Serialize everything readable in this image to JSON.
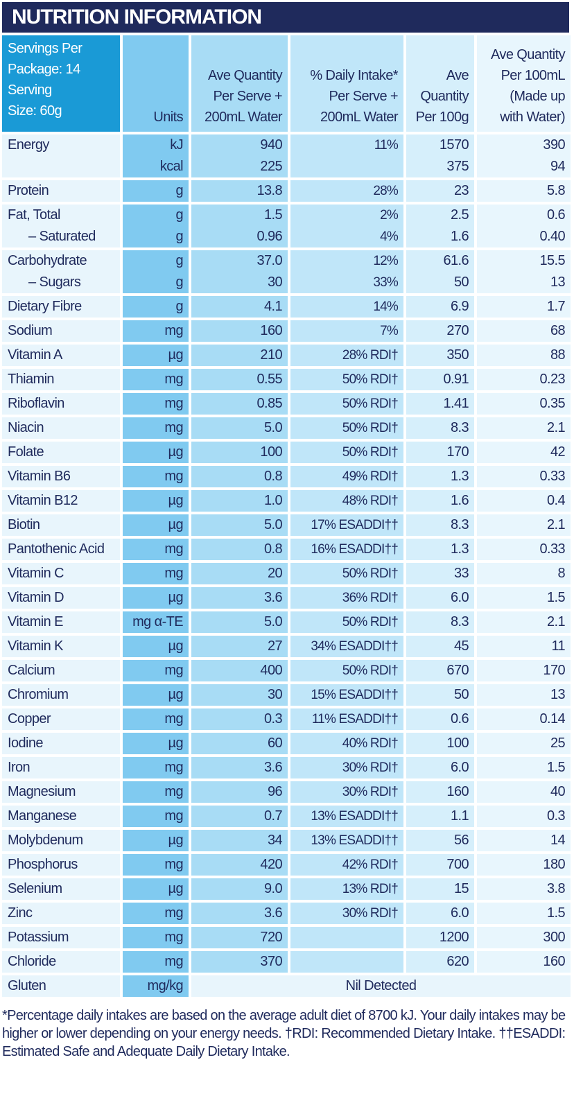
{
  "title": "NUTRITION INFORMATION",
  "header": {
    "servings": "Servings Per\nPackage: 14\nServing\nSize: 60g",
    "units": "Units",
    "per_serve": "Ave Quantity\nPer Serve +\n200mL Water",
    "daily_intake": "% Daily Intake*\nPer Serve +\n200mL Water",
    "per_100g": "Ave\nQuantity\nPer 100g",
    "per_100ml": "Ave Quantity\nPer 100mL\n(Made up\nwith Water)"
  },
  "rows": [
    {
      "name": [
        "Energy",
        ""
      ],
      "units": [
        "kJ",
        "kcal"
      ],
      "serve": [
        "940",
        "225"
      ],
      "di": [
        "11%",
        ""
      ],
      "g100": [
        "1570",
        "375"
      ],
      "ml100": [
        "390",
        "94"
      ]
    },
    {
      "name": [
        "Protein"
      ],
      "units": [
        "g"
      ],
      "serve": [
        "13.8"
      ],
      "di": [
        "28%"
      ],
      "g100": [
        "23"
      ],
      "ml100": [
        "5.8"
      ]
    },
    {
      "name": [
        "Fat, Total",
        "– Saturated"
      ],
      "units": [
        "g",
        "g"
      ],
      "serve": [
        "1.5",
        "0.96"
      ],
      "di": [
        "2%",
        "4%"
      ],
      "g100": [
        "2.5",
        "1.6"
      ],
      "ml100": [
        "0.6",
        "0.40"
      ]
    },
    {
      "name": [
        "Carbohydrate",
        "– Sugars"
      ],
      "units": [
        "g",
        "g"
      ],
      "serve": [
        "37.0",
        "30"
      ],
      "di": [
        "12%",
        "33%"
      ],
      "g100": [
        "61.6",
        "50"
      ],
      "ml100": [
        "15.5",
        "13"
      ]
    },
    {
      "name": [
        "Dietary Fibre"
      ],
      "units": [
        "g"
      ],
      "serve": [
        "4.1"
      ],
      "di": [
        "14%"
      ],
      "g100": [
        "6.9"
      ],
      "ml100": [
        "1.7"
      ]
    },
    {
      "name": [
        "Sodium"
      ],
      "units": [
        "mg"
      ],
      "serve": [
        "160"
      ],
      "di": [
        "7%"
      ],
      "g100": [
        "270"
      ],
      "ml100": [
        "68"
      ]
    },
    {
      "name": [
        "Vitamin A"
      ],
      "units": [
        "µg"
      ],
      "serve": [
        "210"
      ],
      "di": [
        "28% RDI†"
      ],
      "g100": [
        "350"
      ],
      "ml100": [
        "88"
      ]
    },
    {
      "name": [
        "Thiamin"
      ],
      "units": [
        "mg"
      ],
      "serve": [
        "0.55"
      ],
      "di": [
        "50% RDI†"
      ],
      "g100": [
        "0.91"
      ],
      "ml100": [
        "0.23"
      ]
    },
    {
      "name": [
        "Riboflavin"
      ],
      "units": [
        "mg"
      ],
      "serve": [
        "0.85"
      ],
      "di": [
        "50% RDI†"
      ],
      "g100": [
        "1.41"
      ],
      "ml100": [
        "0.35"
      ]
    },
    {
      "name": [
        "Niacin"
      ],
      "units": [
        "mg"
      ],
      "serve": [
        "5.0"
      ],
      "di": [
        "50% RDI†"
      ],
      "g100": [
        "8.3"
      ],
      "ml100": [
        "2.1"
      ]
    },
    {
      "name": [
        "Folate"
      ],
      "units": [
        "µg"
      ],
      "serve": [
        "100"
      ],
      "di": [
        "50% RDI†"
      ],
      "g100": [
        "170"
      ],
      "ml100": [
        "42"
      ]
    },
    {
      "name": [
        "Vitamin B6"
      ],
      "units": [
        "mg"
      ],
      "serve": [
        "0.8"
      ],
      "di": [
        "49% RDI†"
      ],
      "g100": [
        "1.3"
      ],
      "ml100": [
        "0.33"
      ]
    },
    {
      "name": [
        "Vitamin B12"
      ],
      "units": [
        "µg"
      ],
      "serve": [
        "1.0"
      ],
      "di": [
        "48% RDI†"
      ],
      "g100": [
        "1.6"
      ],
      "ml100": [
        "0.4"
      ]
    },
    {
      "name": [
        "Biotin"
      ],
      "units": [
        "µg"
      ],
      "serve": [
        "5.0"
      ],
      "di": [
        "17% ESADDI††"
      ],
      "g100": [
        "8.3"
      ],
      "ml100": [
        "2.1"
      ]
    },
    {
      "name": [
        "Pantothenic Acid"
      ],
      "units": [
        "mg"
      ],
      "serve": [
        "0.8"
      ],
      "di": [
        "16% ESADDI††"
      ],
      "g100": [
        "1.3"
      ],
      "ml100": [
        "0.33"
      ]
    },
    {
      "name": [
        "Vitamin C"
      ],
      "units": [
        "mg"
      ],
      "serve": [
        "20"
      ],
      "di": [
        "50% RDI†"
      ],
      "g100": [
        "33"
      ],
      "ml100": [
        "8"
      ]
    },
    {
      "name": [
        "Vitamin D"
      ],
      "units": [
        "µg"
      ],
      "serve": [
        "3.6"
      ],
      "di": [
        "36% RDI†"
      ],
      "g100": [
        "6.0"
      ],
      "ml100": [
        "1.5"
      ]
    },
    {
      "name": [
        "Vitamin E"
      ],
      "units": [
        "mg α-TE"
      ],
      "serve": [
        "5.0"
      ],
      "di": [
        "50% RDI†"
      ],
      "g100": [
        "8.3"
      ],
      "ml100": [
        "2.1"
      ]
    },
    {
      "name": [
        "Vitamin K"
      ],
      "units": [
        "µg"
      ],
      "serve": [
        "27"
      ],
      "di": [
        "34% ESADDI††"
      ],
      "g100": [
        "45"
      ],
      "ml100": [
        "11"
      ]
    },
    {
      "name": [
        "Calcium"
      ],
      "units": [
        "mg"
      ],
      "serve": [
        "400"
      ],
      "di": [
        "50% RDI†"
      ],
      "g100": [
        "670"
      ],
      "ml100": [
        "170"
      ]
    },
    {
      "name": [
        "Chromium"
      ],
      "units": [
        "µg"
      ],
      "serve": [
        "30"
      ],
      "di": [
        "15% ESADDI††"
      ],
      "g100": [
        "50"
      ],
      "ml100": [
        "13"
      ]
    },
    {
      "name": [
        "Copper"
      ],
      "units": [
        "mg"
      ],
      "serve": [
        "0.3"
      ],
      "di": [
        "11% ESADDI††"
      ],
      "g100": [
        "0.6"
      ],
      "ml100": [
        "0.14"
      ]
    },
    {
      "name": [
        "Iodine"
      ],
      "units": [
        "µg"
      ],
      "serve": [
        "60"
      ],
      "di": [
        "40% RDI†"
      ],
      "g100": [
        "100"
      ],
      "ml100": [
        "25"
      ]
    },
    {
      "name": [
        "Iron"
      ],
      "units": [
        "mg"
      ],
      "serve": [
        "3.6"
      ],
      "di": [
        "30% RDI†"
      ],
      "g100": [
        "6.0"
      ],
      "ml100": [
        "1.5"
      ]
    },
    {
      "name": [
        "Magnesium"
      ],
      "units": [
        "mg"
      ],
      "serve": [
        "96"
      ],
      "di": [
        "30% RDI†"
      ],
      "g100": [
        "160"
      ],
      "ml100": [
        "40"
      ]
    },
    {
      "name": [
        "Manganese"
      ],
      "units": [
        "mg"
      ],
      "serve": [
        "0.7"
      ],
      "di": [
        "13% ESADDI††"
      ],
      "g100": [
        "1.1"
      ],
      "ml100": [
        "0.3"
      ]
    },
    {
      "name": [
        "Molybdenum"
      ],
      "units": [
        "µg"
      ],
      "serve": [
        "34"
      ],
      "di": [
        "13% ESADDI††"
      ],
      "g100": [
        "56"
      ],
      "ml100": [
        "14"
      ]
    },
    {
      "name": [
        "Phosphorus"
      ],
      "units": [
        "mg"
      ],
      "serve": [
        "420"
      ],
      "di": [
        "42% RDI†"
      ],
      "g100": [
        "700"
      ],
      "ml100": [
        "180"
      ]
    },
    {
      "name": [
        "Selenium"
      ],
      "units": [
        "µg"
      ],
      "serve": [
        "9.0"
      ],
      "di": [
        "13% RDI†"
      ],
      "g100": [
        "15"
      ],
      "ml100": [
        "3.8"
      ]
    },
    {
      "name": [
        "Zinc"
      ],
      "units": [
        "mg"
      ],
      "serve": [
        "3.6"
      ],
      "di": [
        "30% RDI†"
      ],
      "g100": [
        "6.0"
      ],
      "ml100": [
        "1.5"
      ]
    },
    {
      "name": [
        "Potassium"
      ],
      "units": [
        "mg"
      ],
      "serve": [
        "720"
      ],
      "di": [
        ""
      ],
      "g100": [
        "1200"
      ],
      "ml100": [
        "300"
      ]
    },
    {
      "name": [
        "Chloride"
      ],
      "units": [
        "mg"
      ],
      "serve": [
        "370"
      ],
      "di": [
        ""
      ],
      "g100": [
        "620"
      ],
      "ml100": [
        "160"
      ]
    }
  ],
  "gluten": {
    "name": "Gluten",
    "units": "mg/kg",
    "value": "Nil Detected"
  },
  "footnote": "*Percentage daily intakes are based on the average adult diet of 8700 kJ. Your daily intakes may be higher or lower depending on your energy needs. †RDI: Recommended Dietary Intake. ††ESADDI: Estimated Safe and Adequate Daily Dietary Intake."
}
